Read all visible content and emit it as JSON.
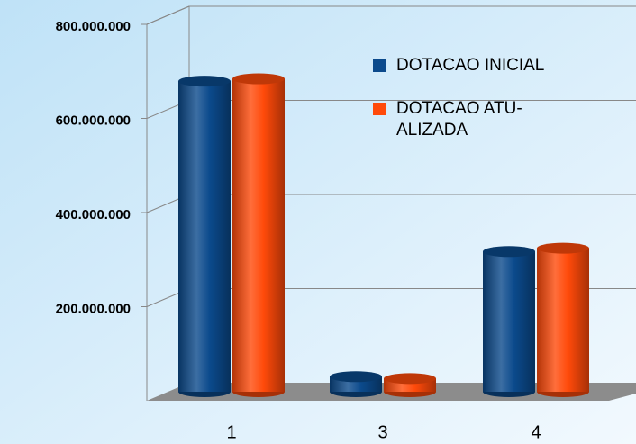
{
  "chart_data": {
    "type": "bar3d",
    "categories": [
      "1",
      "3",
      "4"
    ],
    "series": [
      {
        "name": "DOTACAO INICIAL",
        "color": "#0b4a8c",
        "values": [
          660000000,
          32000000,
          298000000
        ]
      },
      {
        "name": "DOTACAO ATU-ALIZADA",
        "color": "#ff4a0a",
        "values": [
          665000000,
          28000000,
          305000000
        ]
      }
    ],
    "ylim": [
      0,
      800000000
    ],
    "yticks": [
      {
        "value": 200000000,
        "label": "200.000.000"
      },
      {
        "value": 400000000,
        "label": "400.000.000"
      },
      {
        "value": 600000000,
        "label": "600.000.000"
      },
      {
        "value": 800000000,
        "label": "800.000.000"
      }
    ],
    "grid": true,
    "legend": "top-right"
  }
}
